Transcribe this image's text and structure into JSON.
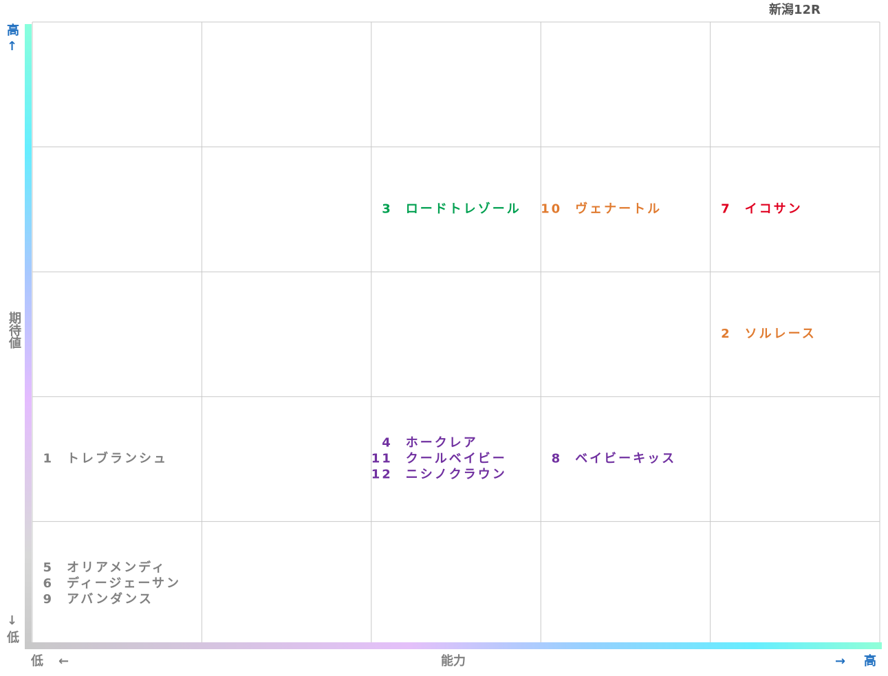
{
  "header": {
    "title": "新潟12R"
  },
  "axes": {
    "y_high": "高",
    "y_high_arrow": "↑",
    "y_label": "期待値",
    "y_low_arrow": "↓",
    "y_low": "低",
    "x_low": "低",
    "x_low_arrow": "←",
    "x_label": "能力",
    "x_high_arrow": "→",
    "x_high": "高"
  },
  "grid": {
    "rows": [
      [
        [],
        [],
        [],
        [],
        []
      ],
      [
        [],
        [],
        [
          {
            "number": "3",
            "name": "ロードトレゾール",
            "color": "#00a050"
          }
        ],
        [
          {
            "number": "10",
            "name": "ヴェナートル",
            "color": "#e07b30"
          }
        ],
        [
          {
            "number": "7",
            "name": "イコサン",
            "color": "#e00020"
          }
        ]
      ],
      [
        [],
        [],
        [],
        [],
        [
          {
            "number": "2",
            "name": "ソルレース",
            "color": "#e07b30"
          }
        ]
      ],
      [
        [
          {
            "number": "1",
            "name": "トレブランシュ",
            "color": "#808080"
          }
        ],
        [],
        [
          {
            "number": "4",
            "name": "ホークレア",
            "color": "#7030a0"
          },
          {
            "number": "11",
            "name": "クールベイビー",
            "color": "#7030a0"
          },
          {
            "number": "12",
            "name": "ニシノクラウン",
            "color": "#7030a0"
          }
        ],
        [
          {
            "number": "8",
            "name": "ベイビーキッス",
            "color": "#7030a0"
          }
        ],
        []
      ],
      [
        [
          {
            "number": "5",
            "name": "オリアメンディ",
            "color": "#808080"
          },
          {
            "number": "6",
            "name": "ディージェーサン",
            "color": "#808080"
          },
          {
            "number": "9",
            "name": "アバンダンス",
            "color": "#808080"
          }
        ],
        [],
        [],
        [],
        []
      ]
    ]
  }
}
